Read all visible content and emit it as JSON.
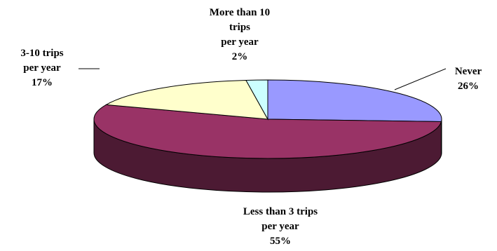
{
  "chart_data": {
    "type": "pie",
    "style": "3d",
    "slices": [
      {
        "label_lines": [
          "Never",
          "26%"
        ],
        "percent": 26,
        "color": "#9999FF",
        "side_color": "#4C4C80"
      },
      {
        "label_lines": [
          "Less than 3 trips",
          "per year",
          "55%"
        ],
        "percent": 55,
        "color": "#993366",
        "side_color": "#4C1A33"
      },
      {
        "label_lines": [
          "3-10 trips",
          "per year",
          "17%"
        ],
        "percent": 17,
        "color": "#FFFFCC",
        "side_color": "#80806A"
      },
      {
        "label_lines": [
          "More than 10",
          "trips",
          "per year",
          "2%"
        ],
        "percent": 2,
        "color": "#CCFFFF",
        "side_color": "#668080"
      }
    ],
    "legend": "none"
  }
}
